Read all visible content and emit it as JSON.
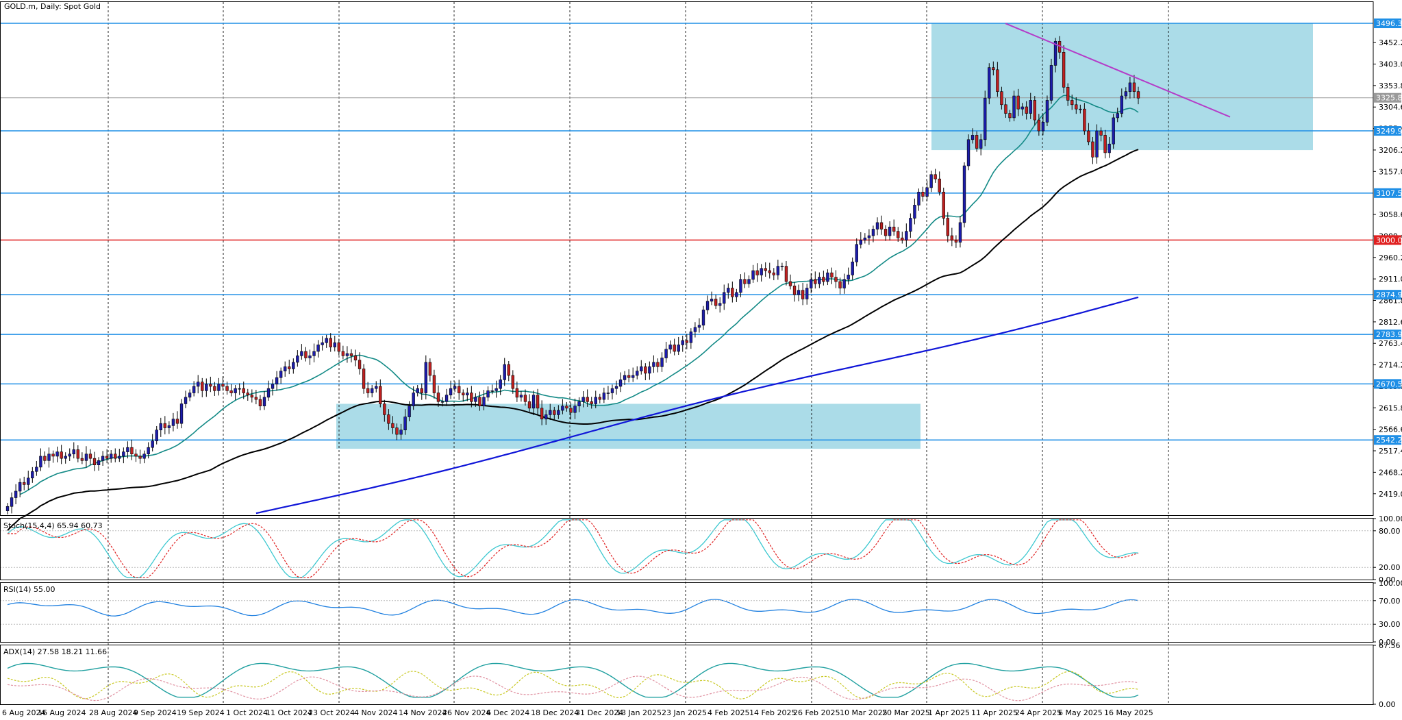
{
  "header": {
    "title": "GOLD.m, Daily:  Spot Gold"
  },
  "colors": {
    "bull": "#1c1cac",
    "bear": "#c02020",
    "grid": "#000000",
    "sma_fast": "#138a86",
    "sma_mid": "#000000",
    "sma_slow": "#1016d8",
    "hline": "#1f8fe6",
    "red_line": "#e02020",
    "zone": "#8fd0e0",
    "trend": "#b43cc8",
    "stoch_main": "#3cc8d0",
    "stoch_signal": "#e02020",
    "rsi": "#2080e0",
    "adx": "#20a0a0",
    "di_plus": "#c8c820",
    "di_minus": "#e090a0"
  },
  "chart_data": [
    {
      "type": "candlestick",
      "ylim": [
        2370,
        3545
      ],
      "y_ticks": [
        "3452.22",
        "3403.02",
        "3353.82",
        "3304.62",
        "3255.42",
        "3206.22",
        "3157.02",
        "3058.62",
        "3009.42",
        "2960.22",
        "2911.02",
        "2861.82",
        "2812.62",
        "2763.42",
        "2714.22",
        "2665.02",
        "2615.82",
        "2566.62",
        "2517.42",
        "2468.22",
        "2419.02"
      ],
      "x_labels": [
        "6 Aug 2024",
        "16 Aug 2024",
        "28 Aug 2024",
        "9 Sep 2024",
        "19 Sep 2024",
        "1 Oct 2024",
        "11 Oct 2024",
        "23 Oct 2024",
        "4 Nov 2024",
        "14 Nov 2024",
        "26 Nov 2024",
        "6 Dec 2024",
        "18 Dec 2024",
        "31 Dec 2024",
        "13 Jan 2025",
        "23 Jan 2025",
        "4 Feb 2025",
        "14 Feb 2025",
        "26 Feb 2025",
        "10 Mar 2025",
        "20 Mar 2025",
        "1 Apr 2025",
        "11 Apr 2025",
        "24 Apr 2025",
        "6 May 2025",
        "16 May 2025"
      ],
      "close_prices": [
        2390,
        2410,
        2425,
        2445,
        2440,
        2455,
        2470,
        2480,
        2505,
        2495,
        2510,
        2505,
        2515,
        2500,
        2505,
        2510,
        2520,
        2500,
        2495,
        2510,
        2500,
        2485,
        2495,
        2505,
        2500,
        2510,
        2500,
        2505,
        2515,
        2525,
        2510,
        2505,
        2500,
        2510,
        2525,
        2540,
        2565,
        2580,
        2570,
        2575,
        2590,
        2580,
        2625,
        2640,
        2650,
        2665,
        2675,
        2655,
        2670,
        2665,
        2655,
        2670,
        2665,
        2655,
        2650,
        2660,
        2660,
        2650,
        2645,
        2640,
        2635,
        2620,
        2640,
        2660,
        2670,
        2685,
        2700,
        2710,
        2705,
        2720,
        2735,
        2745,
        2730,
        2735,
        2745,
        2760,
        2765,
        2775,
        2755,
        2765,
        2745,
        2735,
        2740,
        2735,
        2725,
        2705,
        2660,
        2650,
        2660,
        2665,
        2625,
        2600,
        2580,
        2570,
        2555,
        2565,
        2595,
        2620,
        2650,
        2660,
        2650,
        2720,
        2690,
        2650,
        2630,
        2630,
        2645,
        2660,
        2665,
        2650,
        2645,
        2650,
        2630,
        2640,
        2620,
        2640,
        2655,
        2655,
        2660,
        2680,
        2715,
        2690,
        2660,
        2640,
        2645,
        2630,
        2615,
        2645,
        2615,
        2590,
        2600,
        2610,
        2600,
        2610,
        2620,
        2615,
        2605,
        2620,
        2630,
        2640,
        2630,
        2625,
        2640,
        2635,
        2650,
        2650,
        2660,
        2665,
        2680,
        2690,
        2685,
        2690,
        2700,
        2710,
        2695,
        2710,
        2720,
        2710,
        2730,
        2750,
        2760,
        2745,
        2760,
        2770,
        2765,
        2790,
        2800,
        2805,
        2840,
        2860,
        2865,
        2850,
        2855,
        2880,
        2890,
        2870,
        2880,
        2910,
        2900,
        2910,
        2930,
        2920,
        2935,
        2930,
        2925,
        2920,
        2940,
        2940,
        2905,
        2895,
        2875,
        2885,
        2865,
        2890,
        2910,
        2900,
        2915,
        2905,
        2925,
        2915,
        2905,
        2890,
        2910,
        2920,
        2950,
        2990,
        3000,
        3005,
        3010,
        3025,
        3040,
        3025,
        3010,
        3030,
        3020,
        3005,
        3000,
        3020,
        3050,
        3080,
        3110,
        3100,
        3120,
        3150,
        3140,
        3110,
        3050,
        3010,
        3000,
        2995,
        3040,
        3170,
        3230,
        3240,
        3210,
        3230,
        3325,
        3395,
        3390,
        3340,
        3310,
        3290,
        3280,
        3330,
        3300,
        3305,
        3290,
        3320,
        3275,
        3250,
        3270,
        3320,
        3400,
        3455,
        3430,
        3350,
        3320,
        3310,
        3300,
        3300,
        3250,
        3225,
        3190,
        3250,
        3240,
        3200,
        3220,
        3280,
        3290,
        3330,
        3340,
        3360,
        3340,
        3325
      ],
      "moving_average_lines": [
        "fast",
        "mid",
        "slow"
      ]
    },
    {
      "type": "line",
      "ylim": [
        0,
        100
      ],
      "y_ticks": [
        "100.00",
        "80.00",
        "20.00",
        "0.00"
      ]
    },
    {
      "type": "line",
      "ylim": [
        0,
        100
      ],
      "y_ticks": [
        "100.00",
        "70.00",
        "30.00",
        "0.00"
      ]
    },
    {
      "type": "line",
      "ylim": [
        0,
        67.56
      ],
      "y_ticks": [
        "67.56",
        "0.00"
      ]
    }
  ],
  "price_levels": {
    "top": "3496.33",
    "current": "3325.80",
    "l3249": "3249.99",
    "l3107": "3107.57",
    "l3000": "3000.00",
    "l2874": "2874.92",
    "l2783": "2783.90",
    "l2670": "2670.59",
    "l2542": "2542.21"
  },
  "stoch": {
    "label": "Stoch(15,4,4) 65.94 60.73"
  },
  "rsi": {
    "label": "RSI(14) 55.00"
  },
  "adx": {
    "label": "ADX(14) 27.58 18.21 11.66"
  }
}
